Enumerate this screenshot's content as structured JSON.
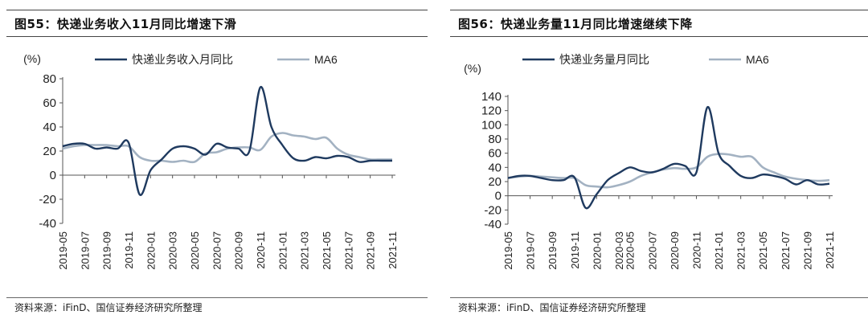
{
  "charts": [
    {
      "title": "图55：快递业务收入11月同比增速下滑",
      "source": "资料来源：iFinD、国信证券经济研究所整理",
      "chart_data": {
        "type": "line",
        "ylabel": "(%)",
        "ylim": [
          -40,
          80
        ],
        "yticks": [
          -40,
          -20,
          0,
          20,
          40,
          60,
          80
        ],
        "xticks": [
          "2019-05",
          "2019-07",
          "2019-09",
          "2019-11",
          "2020-01",
          "2020-03",
          "2020-05",
          "2020-07",
          "2020-09",
          "2020-11",
          "2021-01",
          "2021-03",
          "2021-05",
          "2021-07",
          "2021-09",
          "2021-11"
        ],
        "x": [
          "2019-05",
          "2019-06",
          "2019-07",
          "2019-08",
          "2019-09",
          "2019-10",
          "2019-11",
          "2019-12",
          "2020-01",
          "2020-02",
          "2020-03",
          "2020-04",
          "2020-05",
          "2020-06",
          "2020-07",
          "2020-08",
          "2020-09",
          "2020-10",
          "2020-11",
          "2020-12",
          "2021-01",
          "2021-02",
          "2021-03",
          "2021-04",
          "2021-05",
          "2021-06",
          "2021-07",
          "2021-08",
          "2021-09",
          "2021-10",
          "2021-11"
        ],
        "series": [
          {
            "name": "快递业务收入月同比",
            "color": "#1f3a5f",
            "values": [
              24,
              26,
              26,
              22,
              23,
              22,
              27,
              -16,
              4,
              13,
              22,
              24,
              22,
              17,
              26,
              23,
              22,
              20,
              73,
              40,
              25,
              14,
              12,
              15,
              14,
              16,
              15,
              11,
              12,
              12,
              12
            ]
          },
          {
            "name": "MA6",
            "color": "#a3b2c2",
            "values": [
              22,
              24,
              25,
              25,
              25,
              24,
              24,
              15,
              12,
              12,
              11,
              12,
              11,
              18,
              19,
              22,
              23,
              23,
              21,
              32,
              35,
              33,
              32,
              30,
              31,
              22,
              17,
              15,
              13,
              13,
              13
            ]
          }
        ],
        "legend_position": "top"
      }
    },
    {
      "title": "图56：快递业务量11月同比增速继续下降",
      "source": "资料来源：iFinD、国信证券经济研究所整理",
      "chart_data": {
        "type": "line",
        "ylabel": "(%)",
        "ylim": [
          -40,
          140
        ],
        "yticks": [
          -40,
          -20,
          0,
          20,
          40,
          60,
          80,
          100,
          120,
          140
        ],
        "xticks": [
          "2019-05",
          "2019-07",
          "2019-09",
          "2019-11",
          "2020-01",
          "2020-03",
          "2020-05",
          "2020-07",
          "2020-09",
          "2020-11",
          "2021-01",
          "2021-03",
          "2021-05",
          "2021-07",
          "2021-09",
          "2021-11"
        ],
        "x": [
          "2019-05",
          "2019-06",
          "2019-07",
          "2019-08",
          "2019-09",
          "2019-10",
          "2019-11",
          "2019-12",
          "2020-01",
          "2020-02",
          "2020-03",
          "2020-05",
          "2020-06",
          "2020-07",
          "2020-08",
          "2020-09",
          "2020-10",
          "2020-11",
          "2020-12",
          "2021-01",
          "2021-02",
          "2021-03",
          "2021-04",
          "2021-05",
          "2021-06",
          "2021-07",
          "2021-08",
          "2021-09",
          "2021-10",
          "2021-11"
        ],
        "series": [
          {
            "name": "快递业务量月同比",
            "color": "#1f3a5f",
            "values": [
              25,
              28,
              28,
              25,
              22,
              22,
              26,
              -17,
              2,
              22,
              32,
              40,
              35,
              33,
              38,
              45,
              42,
              33,
              125,
              60,
              42,
              28,
              25,
              30,
              28,
              24,
              16,
              22,
              16,
              17
            ]
          },
          {
            "name": "MA6",
            "color": "#a3b2c2",
            "values": [
              25,
              27,
              28,
              27,
              26,
              25,
              25,
              15,
              13,
              12,
              15,
              20,
              28,
              33,
              37,
              39,
              38,
              40,
              55,
              59,
              58,
              55,
              55,
              40,
              33,
              27,
              24,
              22,
              21,
              22
            ]
          }
        ],
        "legend_position": "top"
      }
    }
  ]
}
